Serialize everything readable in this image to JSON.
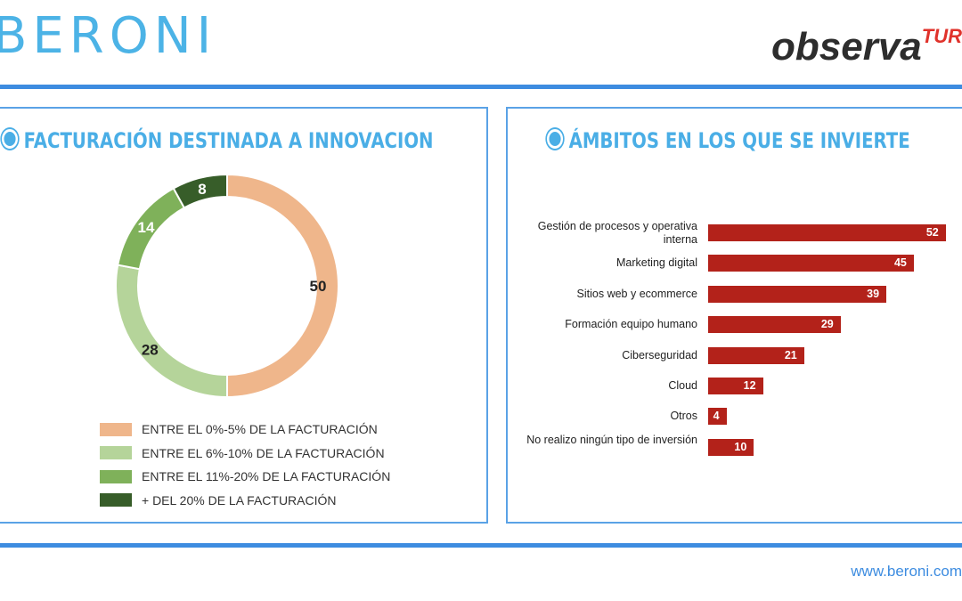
{
  "header": {
    "logo_left": "BERONI",
    "logo_right_main": "observa",
    "logo_right_accent": "TUR"
  },
  "footer": {
    "url": "www.beroni.com"
  },
  "colors": {
    "accent": "#4aaee6",
    "rule": "#3d8ce0",
    "bar": "#b3221a"
  },
  "chart_data": [
    {
      "type": "pie",
      "variant": "donut",
      "title": "FACTURACIÓN DESTINADA A INNOVACION",
      "categories": [
        "ENTRE EL 0%-5% DE LA FACTURACIÓN",
        "ENTRE EL 6%-10% DE LA FACTURACIÓN",
        "ENTRE EL 11%-20% DE LA FACTURACIÓN",
        "+ DEL 20% DE LA FACTURACIÓN"
      ],
      "values": [
        50,
        28,
        14,
        8
      ],
      "colors": [
        "#efb68b",
        "#b5d49a",
        "#7fb15a",
        "#375d29"
      ],
      "legend": "bottom"
    },
    {
      "type": "bar",
      "orientation": "horizontal",
      "title": "ÁMBITOS EN LOS QUE SE INVIERTE",
      "categories": [
        "Gestión de procesos y operativa interna",
        "Marketing digital",
        "Sitios web y ecommerce",
        "Formación equipo humano",
        "Ciberseguridad",
        "Cloud",
        "Otros",
        "No realizo ningún tipo de inversión"
      ],
      "values": [
        52,
        45,
        39,
        29,
        21,
        12,
        4,
        10
      ],
      "grid": false
    }
  ]
}
